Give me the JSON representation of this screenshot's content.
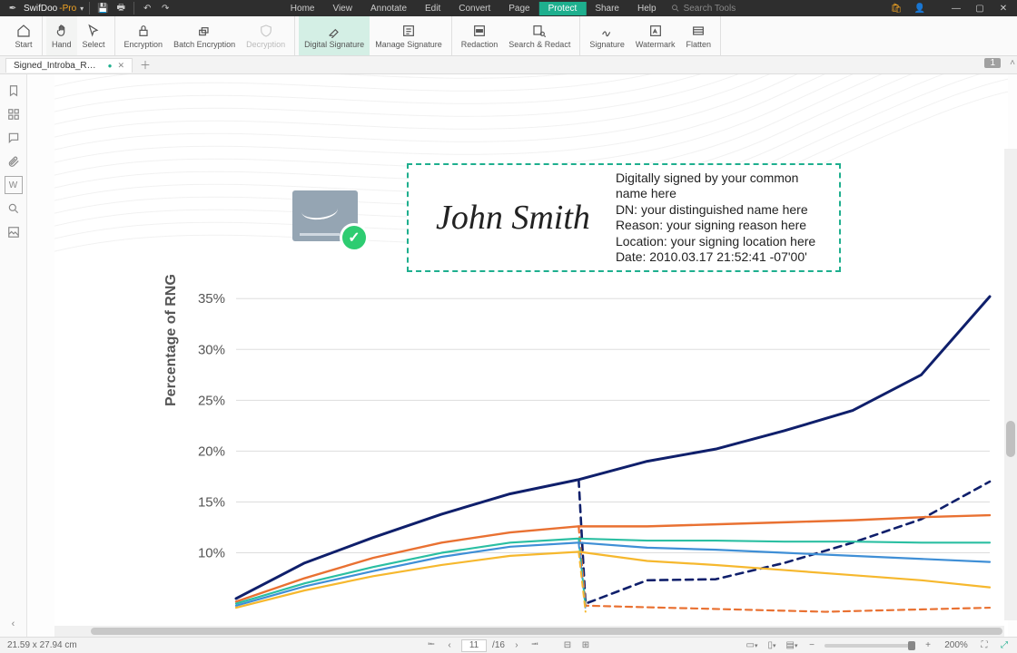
{
  "titlebar": {
    "brand": "SwifDoo",
    "brand_suffix": "-Pro",
    "search_placeholder": "Search Tools"
  },
  "menus": [
    "Home",
    "View",
    "Annotate",
    "Edit",
    "Convert",
    "Page",
    "Protect",
    "Share",
    "Help"
  ],
  "active_menu_index": 6,
  "ribbon": {
    "groups": [
      {
        "items": [
          {
            "key": "start",
            "label": "Start",
            "icon": "home"
          }
        ]
      },
      {
        "items": [
          {
            "key": "hand",
            "label": "Hand",
            "icon": "hand",
            "highlight": "hand"
          },
          {
            "key": "select",
            "label": "Select",
            "icon": "cursor"
          }
        ]
      },
      {
        "items": [
          {
            "key": "encryption",
            "label": "Encryption",
            "icon": "lock"
          },
          {
            "key": "batch-encryption",
            "label": "Batch Encryption",
            "icon": "lock-stack"
          },
          {
            "key": "decryption",
            "label": "Decryption",
            "icon": "shield",
            "disabled": true
          }
        ]
      },
      {
        "items": [
          {
            "key": "digital-signature",
            "label": "Digital Signature",
            "icon": "sig-pen",
            "active": true
          },
          {
            "key": "manage-signature",
            "label": "Manage Signature",
            "icon": "sig-list"
          }
        ]
      },
      {
        "items": [
          {
            "key": "redaction",
            "label": "Redaction",
            "icon": "redact"
          },
          {
            "key": "search-redact",
            "label": "Search & Redact",
            "icon": "redact-search"
          }
        ]
      },
      {
        "items": [
          {
            "key": "signature",
            "label": "Signature",
            "icon": "signature"
          },
          {
            "key": "watermark",
            "label": "Watermark",
            "icon": "watermark"
          },
          {
            "key": "flatten",
            "label": "Flatten",
            "icon": "flatten"
          }
        ]
      }
    ]
  },
  "tab": {
    "name": "Signed_Introba_RNGAvaila...pdf",
    "dirty": true
  },
  "page_badge": "1",
  "signature": {
    "name": "John Smith",
    "lines": [
      "Digitally signed by your common name here",
      "DN: your distinguished name here",
      "Reason: your signing reason here",
      "Location: your signing location here",
      "Date: 2010.03.17 21:52:41 -07'00'"
    ]
  },
  "chart": {
    "ylabel": "Percentage of RNG",
    "x_domain": [
      0,
      11
    ],
    "y_domain": [
      3,
      36
    ],
    "y_ticks": [
      10,
      15,
      20,
      25,
      30,
      35
    ],
    "y_tick_format_suffix": "%",
    "gridline_color": "#dddddd",
    "axis_label_color": "#555555",
    "axis_label_fontsize": 16,
    "tick_fontsize": 15,
    "series": [
      {
        "name": "navy-solid",
        "color": "#0f1f6b",
        "width": 3,
        "dash": "none",
        "data": [
          [
            0,
            5.5
          ],
          [
            1,
            9
          ],
          [
            2,
            11.5
          ],
          [
            3,
            13.8
          ],
          [
            4,
            15.8
          ],
          [
            5,
            17.2
          ],
          [
            6,
            19
          ],
          [
            7,
            20.2
          ],
          [
            8,
            22
          ],
          [
            9,
            24
          ],
          [
            10,
            27.5
          ],
          [
            11,
            35.2
          ]
        ]
      },
      {
        "name": "navy-dashed",
        "color": "#0f1f6b",
        "width": 2.6,
        "dash": "8,6",
        "data": [
          [
            5,
            17.2
          ],
          [
            5.1,
            5.0
          ],
          [
            6,
            7.3
          ],
          [
            7,
            7.4
          ],
          [
            8,
            9.0
          ],
          [
            9,
            11
          ],
          [
            10,
            13.3
          ],
          [
            11,
            17
          ]
        ]
      },
      {
        "name": "orange-solid",
        "color": "#e97132",
        "width": 2.4,
        "dash": "none",
        "data": [
          [
            0,
            5.2
          ],
          [
            1,
            7.5
          ],
          [
            2,
            9.5
          ],
          [
            3,
            11
          ],
          [
            4,
            12
          ],
          [
            5,
            12.6
          ],
          [
            6,
            12.6
          ],
          [
            7,
            12.8
          ],
          [
            8,
            13
          ],
          [
            9,
            13.2
          ],
          [
            10,
            13.5
          ],
          [
            11,
            13.7
          ]
        ]
      },
      {
        "name": "orange-dashed",
        "color": "#e97132",
        "width": 2.2,
        "dash": "7,5",
        "data": [
          [
            5,
            12.6
          ],
          [
            5.1,
            4.8
          ],
          [
            8.6,
            4.2
          ],
          [
            11,
            4.6
          ]
        ]
      },
      {
        "name": "teal-solid",
        "color": "#2bbfa2",
        "width": 2.2,
        "dash": "none",
        "data": [
          [
            0,
            5.0
          ],
          [
            1,
            7.0
          ],
          [
            2,
            8.6
          ],
          [
            3,
            10
          ],
          [
            4,
            11
          ],
          [
            5,
            11.4
          ],
          [
            6,
            11.2
          ],
          [
            7,
            11.2
          ],
          [
            8,
            11.1
          ],
          [
            9,
            11.1
          ],
          [
            10,
            11.0
          ],
          [
            11,
            11.0
          ]
        ]
      },
      {
        "name": "teal-dashed",
        "color": "#2bbfa2",
        "width": 2.0,
        "dash": "6,5",
        "data": [
          [
            5,
            11.4
          ],
          [
            5.1,
            4.6
          ]
        ]
      },
      {
        "name": "blue-solid",
        "color": "#3f8fd6",
        "width": 2.2,
        "dash": "none",
        "data": [
          [
            0,
            4.8
          ],
          [
            1,
            6.7
          ],
          [
            2,
            8.2
          ],
          [
            3,
            9.6
          ],
          [
            4,
            10.6
          ],
          [
            5,
            11.0
          ],
          [
            6,
            10.5
          ],
          [
            7,
            10.3
          ],
          [
            8,
            10.0
          ],
          [
            9,
            9.7
          ],
          [
            10,
            9.4
          ],
          [
            11,
            9.1
          ]
        ]
      },
      {
        "name": "blue-dashed",
        "color": "#3f8fd6",
        "width": 2.0,
        "dash": "6,5",
        "data": [
          [
            5,
            11.0
          ],
          [
            5.1,
            4.4
          ]
        ]
      },
      {
        "name": "yellow-solid",
        "color": "#f6b82e",
        "width": 2.2,
        "dash": "none",
        "data": [
          [
            0,
            4.6
          ],
          [
            1,
            6.3
          ],
          [
            2,
            7.7
          ],
          [
            3,
            8.8
          ],
          [
            4,
            9.7
          ],
          [
            5,
            10.1
          ],
          [
            6,
            9.2
          ],
          [
            7,
            8.8
          ],
          [
            8,
            8.3
          ],
          [
            9,
            7.8
          ],
          [
            10,
            7.3
          ],
          [
            11,
            6.6
          ]
        ]
      },
      {
        "name": "yellow-dashed",
        "color": "#f6b82e",
        "width": 2.0,
        "dash": "6,5",
        "data": [
          [
            5,
            10.1
          ],
          [
            5.1,
            4.2
          ]
        ]
      }
    ]
  },
  "status": {
    "dimensions": "21.59 x 27.94 cm",
    "page_current": "11",
    "page_total": "/16",
    "zoom": "200%"
  }
}
